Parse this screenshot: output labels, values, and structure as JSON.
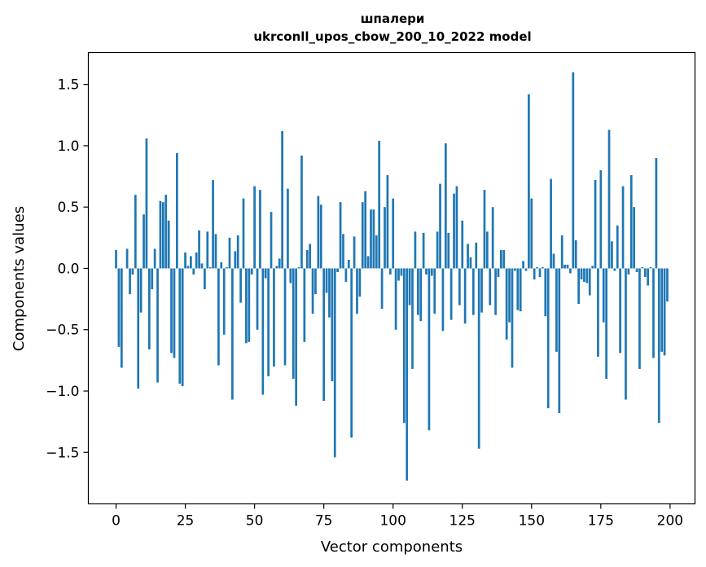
{
  "chart_data": {
    "type": "bar",
    "title": "шпалери",
    "subtitle": "ukrconll_upos_cbow_200_10_2022 model",
    "xlabel": "Vector components",
    "ylabel": "Components values",
    "xlim": [
      -10,
      209
    ],
    "ylim": [
      -1.92,
      1.76
    ],
    "xticks": [
      0,
      25,
      50,
      75,
      100,
      125,
      150,
      175,
      200
    ],
    "yticks": [
      -1.5,
      -1.0,
      -0.5,
      0.0,
      0.5,
      1.0,
      1.5
    ],
    "ytick_labels": [
      "−1.5",
      "−1.0",
      "−0.5",
      "0.0",
      "0.5",
      "1.0",
      "1.5"
    ],
    "bar_color": "#1f77b4",
    "grid": false,
    "legend": "none",
    "values": [
      0.15,
      -0.64,
      -0.81,
      0.0,
      0.16,
      -0.21,
      -0.05,
      0.6,
      -0.98,
      -0.36,
      0.44,
      1.06,
      -0.66,
      -0.17,
      0.16,
      -0.93,
      0.55,
      0.54,
      0.6,
      0.39,
      -0.69,
      -0.73,
      0.94,
      -0.94,
      -0.96,
      0.13,
      0.02,
      0.1,
      -0.05,
      0.13,
      0.31,
      0.04,
      -0.17,
      0.3,
      0.01,
      0.72,
      0.28,
      -0.79,
      0.05,
      -0.54,
      0.01,
      0.25,
      -1.07,
      0.14,
      0.27,
      -0.28,
      0.57,
      -0.61,
      -0.6,
      -0.05,
      0.67,
      -0.5,
      0.64,
      -1.03,
      -0.08,
      -0.88,
      0.46,
      -0.8,
      0.02,
      0.08,
      1.12,
      -0.79,
      0.65,
      -0.12,
      -0.9,
      -1.12,
      0.01,
      0.92,
      -0.6,
      0.15,
      0.2,
      -0.37,
      -0.21,
      0.59,
      0.52,
      -1.08,
      -0.2,
      -0.4,
      -0.92,
      -1.54,
      -0.03,
      0.54,
      0.28,
      -0.11,
      0.07,
      -1.38,
      0.26,
      -0.37,
      -0.23,
      0.54,
      0.63,
      0.1,
      0.48,
      0.48,
      0.27,
      1.04,
      -0.33,
      0.5,
      0.76,
      -0.05,
      0.57,
      -0.5,
      -0.1,
      -0.06,
      -1.26,
      -1.73,
      -0.3,
      -0.82,
      0.3,
      -0.38,
      -0.43,
      0.29,
      -0.05,
      -1.32,
      -0.06,
      -0.37,
      0.3,
      0.69,
      -0.51,
      1.02,
      0.29,
      -0.42,
      0.61,
      0.67,
      -0.3,
      0.39,
      -0.45,
      0.2,
      0.09,
      -0.38,
      0.21,
      -1.47,
      -0.36,
      0.64,
      0.3,
      -0.3,
      0.5,
      -0.38,
      -0.07,
      0.15,
      0.15,
      -0.58,
      -0.44,
      -0.81,
      -0.02,
      -0.34,
      -0.35,
      0.06,
      -0.02,
      1.42,
      0.57,
      -0.09,
      0.01,
      -0.07,
      0.01,
      -0.39,
      -1.14,
      0.73,
      0.12,
      -0.68,
      -1.18,
      0.27,
      0.03,
      0.03,
      -0.04,
      1.6,
      0.23,
      -0.29,
      -0.09,
      -0.11,
      -0.12,
      -0.22,
      0.02,
      0.72,
      -0.72,
      0.8,
      -0.44,
      -0.9,
      1.13,
      0.22,
      -0.02,
      0.35,
      -0.69,
      0.67,
      -1.07,
      -0.05,
      0.76,
      0.5,
      -0.03,
      -0.82,
      0.01,
      -0.07,
      -0.14,
      0.01,
      -0.73,
      0.9,
      -1.26,
      -0.68,
      -0.71,
      -0.27
    ]
  }
}
